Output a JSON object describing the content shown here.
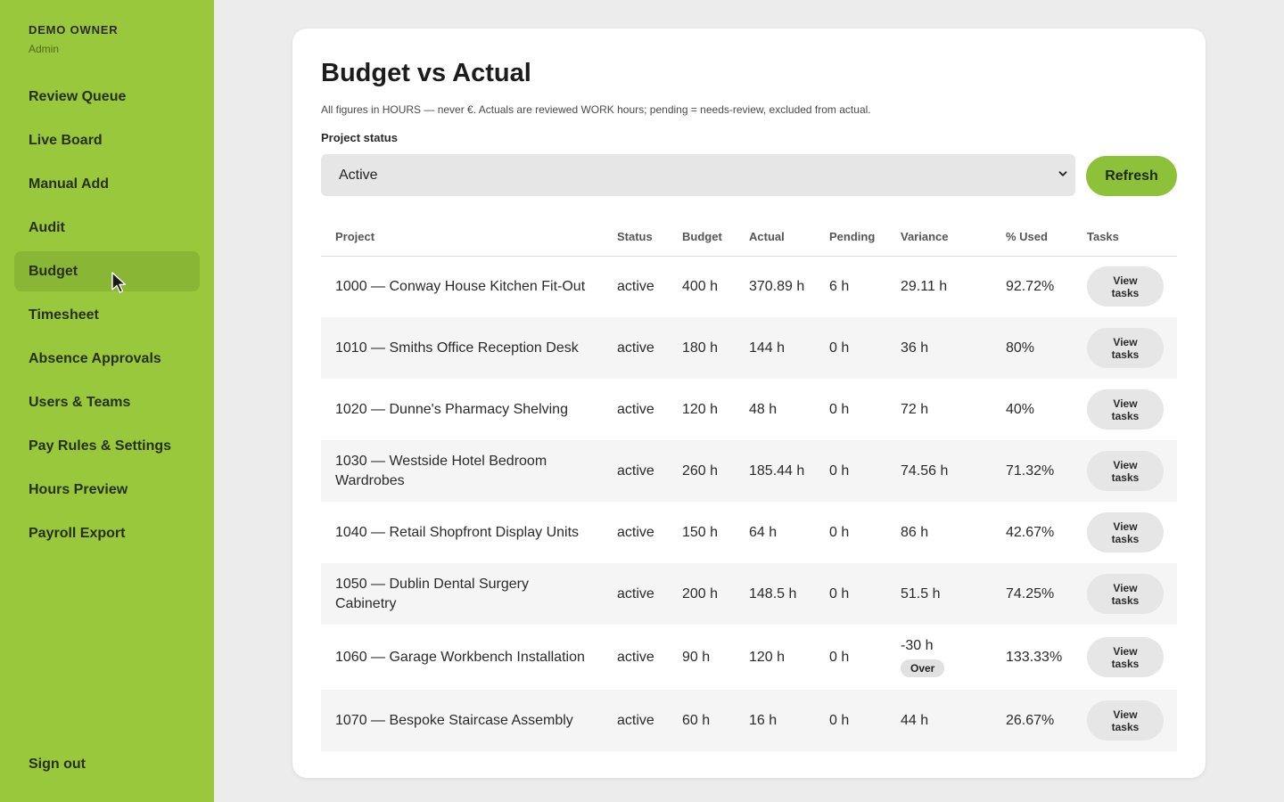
{
  "sidebar": {
    "owner_name": "DEMO OWNER",
    "owner_role": "Admin",
    "items": [
      {
        "label": "Review Queue"
      },
      {
        "label": "Live Board"
      },
      {
        "label": "Manual Add"
      },
      {
        "label": "Audit"
      },
      {
        "label": "Budget",
        "active": true
      },
      {
        "label": "Timesheet"
      },
      {
        "label": "Absence Approvals"
      },
      {
        "label": "Users & Teams"
      },
      {
        "label": "Pay Rules & Settings"
      },
      {
        "label": "Hours Preview"
      },
      {
        "label": "Payroll Export"
      }
    ],
    "sign_out": "Sign out"
  },
  "main": {
    "title": "Budget vs Actual",
    "subtitle": "All figures in HOURS — never €. Actuals are reviewed WORK hours; pending = needs-review, excluded from actual.",
    "filter_label": "Project status",
    "filter_value": "Active",
    "refresh_label": "Refresh",
    "table": {
      "columns": [
        "Project",
        "Status",
        "Budget",
        "Actual",
        "Pending",
        "Variance",
        "% Used",
        "Tasks"
      ],
      "view_label": "View tasks",
      "rows": [
        {
          "project": "1000 — Conway House Kitchen Fit-Out",
          "status": "active",
          "budget": "400 h",
          "actual": "370.89 h",
          "pending": "6 h",
          "variance": "29.11 h",
          "used": "92.72%"
        },
        {
          "project": "1010 — Smiths Office Reception Desk",
          "status": "active",
          "budget": "180 h",
          "actual": "144 h",
          "pending": "0 h",
          "variance": "36 h",
          "used": "80%"
        },
        {
          "project": "1020 — Dunne's Pharmacy Shelving",
          "status": "active",
          "budget": "120 h",
          "actual": "48 h",
          "pending": "0 h",
          "variance": "72 h",
          "used": "40%"
        },
        {
          "project": "1030 — Westside Hotel Bedroom Wardrobes",
          "status": "active",
          "budget": "260 h",
          "actual": "185.44 h",
          "pending": "0 h",
          "variance": "74.56 h",
          "used": "71.32%"
        },
        {
          "project": "1040 — Retail Shopfront Display Units",
          "status": "active",
          "budget": "150 h",
          "actual": "64 h",
          "pending": "0 h",
          "variance": "86 h",
          "used": "42.67%"
        },
        {
          "project": "1050 — Dublin Dental Surgery Cabinetry",
          "status": "active",
          "budget": "200 h",
          "actual": "148.5 h",
          "pending": "0 h",
          "variance": "51.5 h",
          "used": "74.25%"
        },
        {
          "project": "1060 — Garage Workbench Installation",
          "status": "active",
          "budget": "90 h",
          "actual": "120 h",
          "pending": "0 h",
          "variance": "-30 h",
          "badge": "Over",
          "used": "133.33%"
        },
        {
          "project": "1070 — Bespoke Staircase Assembly",
          "status": "active",
          "budget": "60 h",
          "actual": "16 h",
          "pending": "0 h",
          "variance": "44 h",
          "used": "26.67%"
        }
      ]
    }
  },
  "colors": {
    "sidebar_bg": "#99c83c",
    "sidebar_active": "#89b634",
    "accent_button": "#8dc13a",
    "page_bg": "#ececec"
  },
  "icons": {
    "select_chevron": "chevron-down-icon",
    "cursor": "mouse-pointer-icon"
  }
}
